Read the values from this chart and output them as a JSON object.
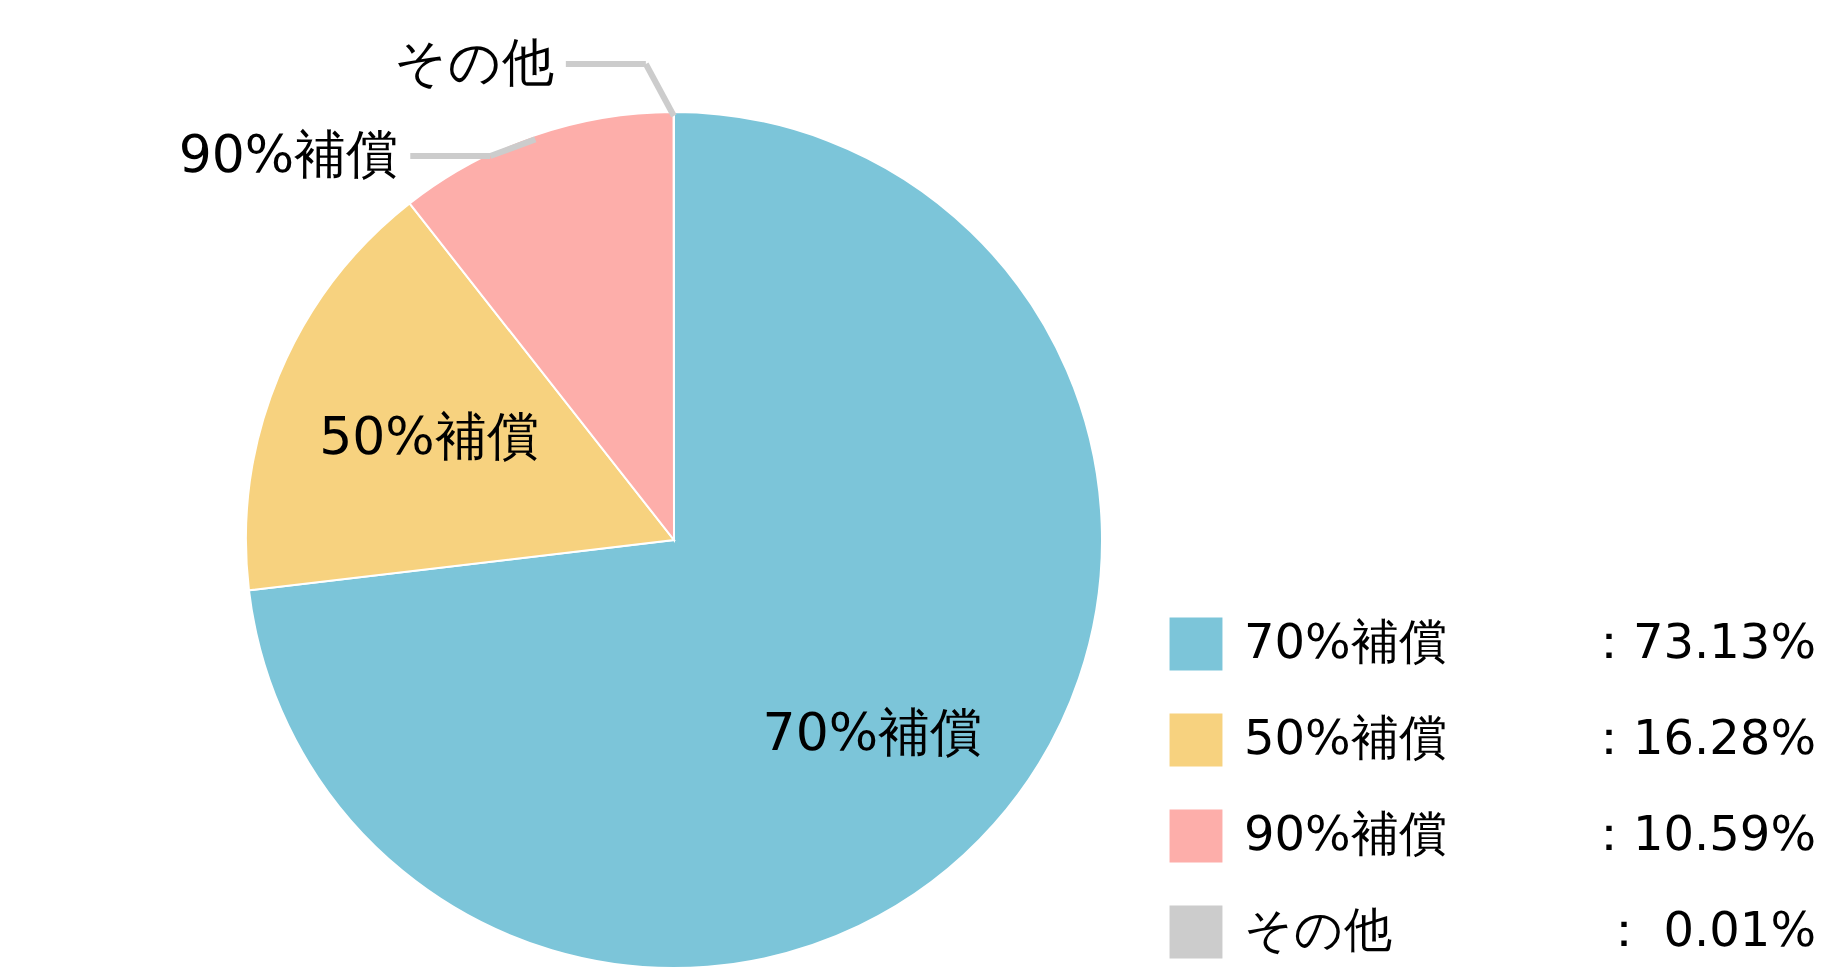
{
  "chart_data": {
    "type": "pie",
    "categories": [
      "70%補償",
      "50%補償",
      "90%補償",
      "その他"
    ],
    "values": [
      73.13,
      16.28,
      10.59,
      0.01
    ],
    "value_labels": [
      "：73.13%",
      "：16.28%",
      "：10.59%",
      "：  0.01%"
    ],
    "colors": [
      "#7cc5d9",
      "#f7d27f",
      "#fdaeaa",
      "#cccccc"
    ],
    "legend": "bottom right"
  }
}
